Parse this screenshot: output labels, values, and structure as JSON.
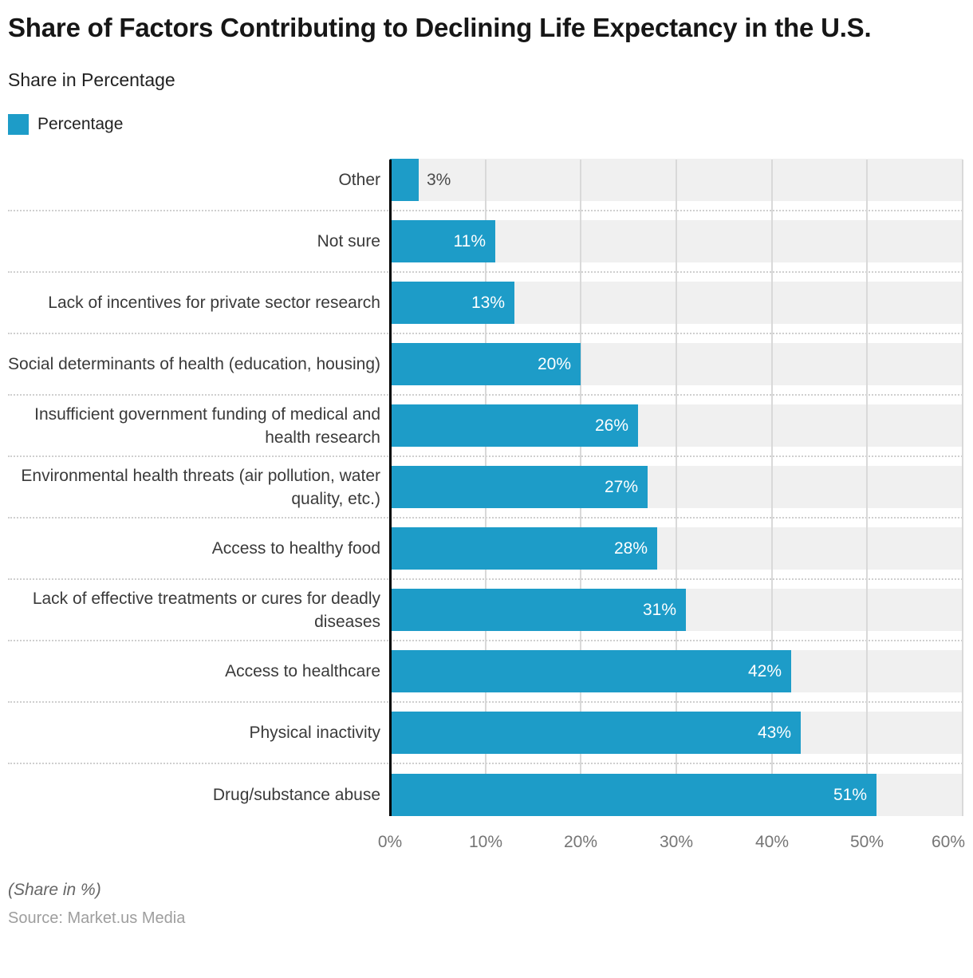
{
  "header": {
    "title": "Share of Factors Contributing to Declining Life Expectancy in the U.S.",
    "subtitle": "Share in Percentage"
  },
  "legend": {
    "label": "Percentage"
  },
  "chart_data": {
    "type": "bar",
    "orientation": "horizontal",
    "title": "Share of Factors Contributing to Declining Life Expectancy in the U.S.",
    "subtitle": "Share in Percentage",
    "legend_entries": [
      "Percentage"
    ],
    "legend_position": "top-left",
    "categories": [
      "Other",
      "Not sure",
      "Lack of incentives for private sector research",
      "Social determinants of health (education, housing)",
      "Insufficient government funding of medical and health research",
      "Environmental health threats (air pollution, water quality, etc.)",
      "Access to healthy food",
      "Lack of effective treatments or cures for deadly diseases",
      "Access to healthcare",
      "Physical inactivity",
      "Drug/substance abuse"
    ],
    "values": [
      3,
      11,
      13,
      20,
      26,
      27,
      28,
      31,
      42,
      43,
      51
    ],
    "value_suffix": "%",
    "xlim": [
      0,
      60
    ],
    "xticks": [
      "0%",
      "10%",
      "20%",
      "30%",
      "40%",
      "50%",
      "60%"
    ],
    "grid": "vertical",
    "bar_color": "#1d9cc8",
    "track_color": "#f0f0f0",
    "gridline_color": "#d9d9d9",
    "value_label_inside_color": "#ffffff",
    "value_label_outside_color": "#4a4a4a"
  },
  "footer": {
    "note": "(Share in %)",
    "source": "Source: Market.us Media"
  }
}
